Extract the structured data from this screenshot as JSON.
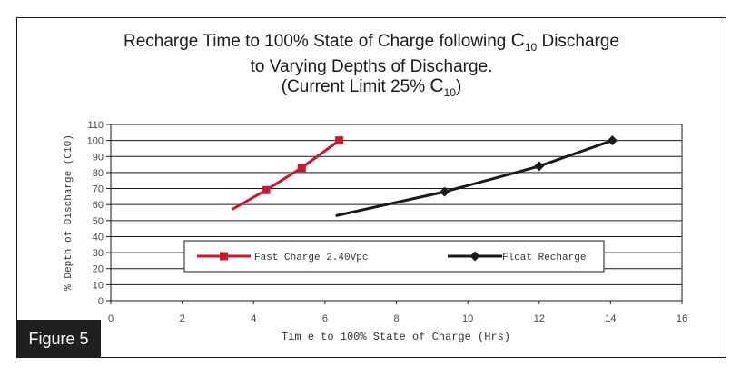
{
  "chart_data": {
    "type": "line",
    "title": {
      "line1_prefix": "Recharge Time to 100% State of Charge following ",
      "line1_c": "C",
      "line1_sub": "10",
      "line1_suffix": " Discharge",
      "line2": "to Varying Depths of Discharge.",
      "line3_prefix": "(Current Limit 25% ",
      "line3_c": "C",
      "line3_sub": "10",
      "line3_suffix": ")"
    },
    "xlabel": "Tim e to 100% State of Charge (Hrs)",
    "ylabel": "% Depth of Discharge (C10)",
    "xlim": [
      0,
      16
    ],
    "ylim": [
      0,
      110
    ],
    "xticks": [
      "0",
      "2",
      "4",
      "6",
      "8",
      "10",
      "12",
      "14",
      "16"
    ],
    "yticks": [
      "0",
      "10",
      "20",
      "30",
      "40",
      "50",
      "60",
      "70",
      "80",
      "90",
      "100",
      "110"
    ],
    "grid": "horizontal",
    "legend_position": "bottom-center",
    "series": [
      {
        "name": "Fast Charge 2.40Vpc",
        "color": "#c8192e",
        "marker": "square",
        "points": [
          [
            3.4,
            57
          ],
          [
            4.35,
            69
          ],
          [
            5.35,
            83
          ],
          [
            6.4,
            100
          ]
        ],
        "marker_points": [
          [
            4.35,
            69
          ],
          [
            5.35,
            83
          ],
          [
            6.4,
            100
          ]
        ]
      },
      {
        "name": "Float Recharge",
        "color": "#1a1a1a",
        "marker": "diamond",
        "points": [
          [
            6.3,
            53
          ],
          [
            9.35,
            68
          ],
          [
            12.0,
            84
          ],
          [
            14.05,
            100
          ]
        ],
        "marker_points": [
          [
            9.35,
            68
          ],
          [
            12.0,
            84
          ],
          [
            14.05,
            100
          ]
        ]
      }
    ]
  },
  "figure_label": "Figure 5"
}
